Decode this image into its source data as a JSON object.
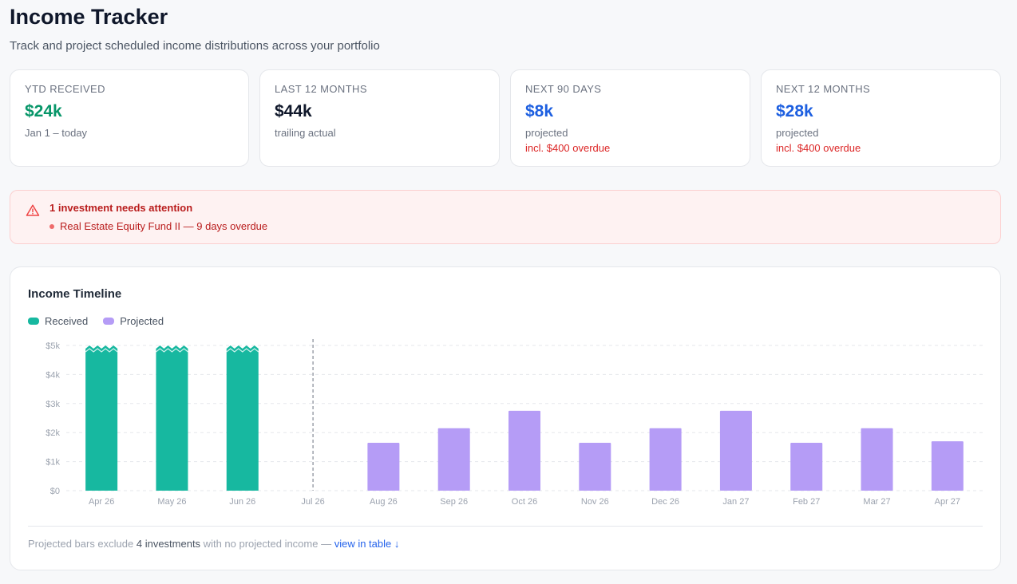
{
  "header": {
    "title": "Income Tracker",
    "subtitle": "Track and project scheduled income distributions across your portfolio"
  },
  "cards": [
    {
      "label": "YTD RECEIVED",
      "value": "$24k",
      "sub": "Jan 1 – today",
      "warning": "",
      "value_color": "#079669"
    },
    {
      "label": "LAST 12 MONTHS",
      "value": "$44k",
      "sub": "trailing actual",
      "warning": "",
      "value_color": "#0f172a"
    },
    {
      "label": "NEXT 90 DAYS",
      "value": "$8k",
      "sub": "projected",
      "warning": "incl. $400 overdue",
      "value_color": "#1d5fe0"
    },
    {
      "label": "NEXT 12 MONTHS",
      "value": "$28k",
      "sub": "projected",
      "warning": "incl. $400 overdue",
      "value_color": "#1d5fe0"
    }
  ],
  "alert": {
    "icon": "warning-triangle-icon",
    "title": "1 investment needs attention",
    "items": [
      "Real Estate Equity Fund II — 9 days overdue"
    ]
  },
  "timeline": {
    "title": "Income Timeline",
    "legend": [
      {
        "label": "Received",
        "color": "#17b8a0"
      },
      {
        "label": "Projected",
        "color": "#b59cf6"
      }
    ],
    "footnote": {
      "prefix": "Projected bars exclude ",
      "count": "4 investments",
      "middle": " with no projected income — ",
      "link": "view in table ↓"
    }
  },
  "chart_data": {
    "type": "bar",
    "categories": [
      "Apr 26",
      "May 26",
      "Jun 26",
      "Jul 26",
      "Aug 26",
      "Sep 26",
      "Oct 26",
      "Nov 26",
      "Dec 26",
      "Jan 27",
      "Feb 27",
      "Mar 27",
      "Apr 27"
    ],
    "series": [
      {
        "name": "Received",
        "values": [
          5000,
          5000,
          5000,
          null,
          null,
          null,
          null,
          null,
          null,
          null,
          null,
          null,
          null
        ],
        "color": "#17b8a0"
      },
      {
        "name": "Projected",
        "values": [
          null,
          null,
          null,
          null,
          1650,
          2150,
          2750,
          1650,
          2150,
          2750,
          1650,
          2150,
          1700
        ],
        "color": "#b59cf6"
      }
    ],
    "ylim": [
      0,
      5000
    ],
    "yticks": [
      0,
      1000,
      2000,
      3000,
      4000,
      5000
    ],
    "ytick_labels": [
      "$0",
      "$1k",
      "$2k",
      "$3k",
      "$4k",
      "$5k"
    ],
    "received_clipped": true,
    "today_marker_category": "Jul 26",
    "grid": true
  }
}
